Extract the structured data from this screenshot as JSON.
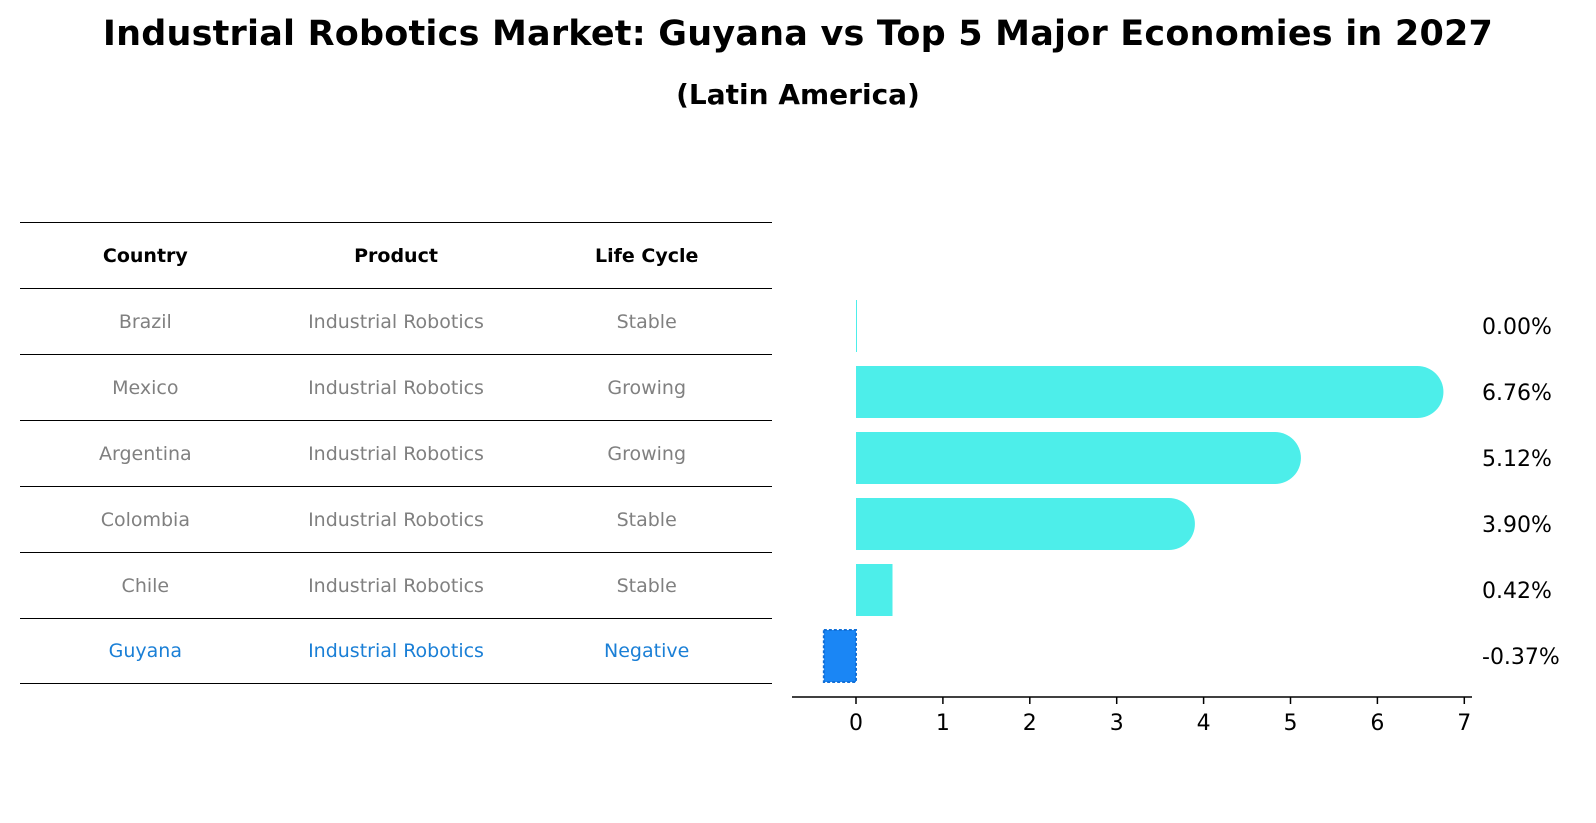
{
  "title": "Industrial Robotics Market: Guyana vs Top 5 Major Economies in 2027",
  "subtitle": "(Latin America)",
  "table": {
    "headers": [
      "Country",
      "Product",
      "Life Cycle"
    ],
    "rows": [
      {
        "country": "Brazil",
        "product": "Industrial Robotics",
        "life_cycle": "Stable"
      },
      {
        "country": "Mexico",
        "product": "Industrial Robotics",
        "life_cycle": "Growing"
      },
      {
        "country": "Argentina",
        "product": "Industrial Robotics",
        "life_cycle": "Growing"
      },
      {
        "country": "Colombia",
        "product": "Industrial Robotics",
        "life_cycle": "Stable"
      },
      {
        "country": "Chile",
        "product": "Industrial Robotics",
        "life_cycle": "Stable"
      },
      {
        "country": "Guyana",
        "product": "Industrial Robotics",
        "life_cycle": "Negative"
      }
    ]
  },
  "colors": {
    "bar": "#4deeea",
    "highlight": "#1a86f5",
    "highlight_text": "#1a7fd6",
    "muted_text": "#808080"
  },
  "chart_data": {
    "type": "bar",
    "orientation": "horizontal",
    "categories": [
      "Brazil",
      "Mexico",
      "Argentina",
      "Colombia",
      "Chile",
      "Guyana"
    ],
    "values": [
      0.0,
      6.76,
      5.12,
      3.9,
      0.42,
      -0.37
    ],
    "value_labels": [
      "0.00%",
      "6.76%",
      "5.12%",
      "3.90%",
      "0.42%",
      "-0.37%"
    ],
    "highlight_category": "Guyana",
    "xticks": [
      "0",
      "1",
      "2",
      "3",
      "4",
      "5",
      "6",
      "7"
    ],
    "xlim": [
      -0.72,
      7.12
    ],
    "xlabel": "",
    "ylabel": ""
  }
}
